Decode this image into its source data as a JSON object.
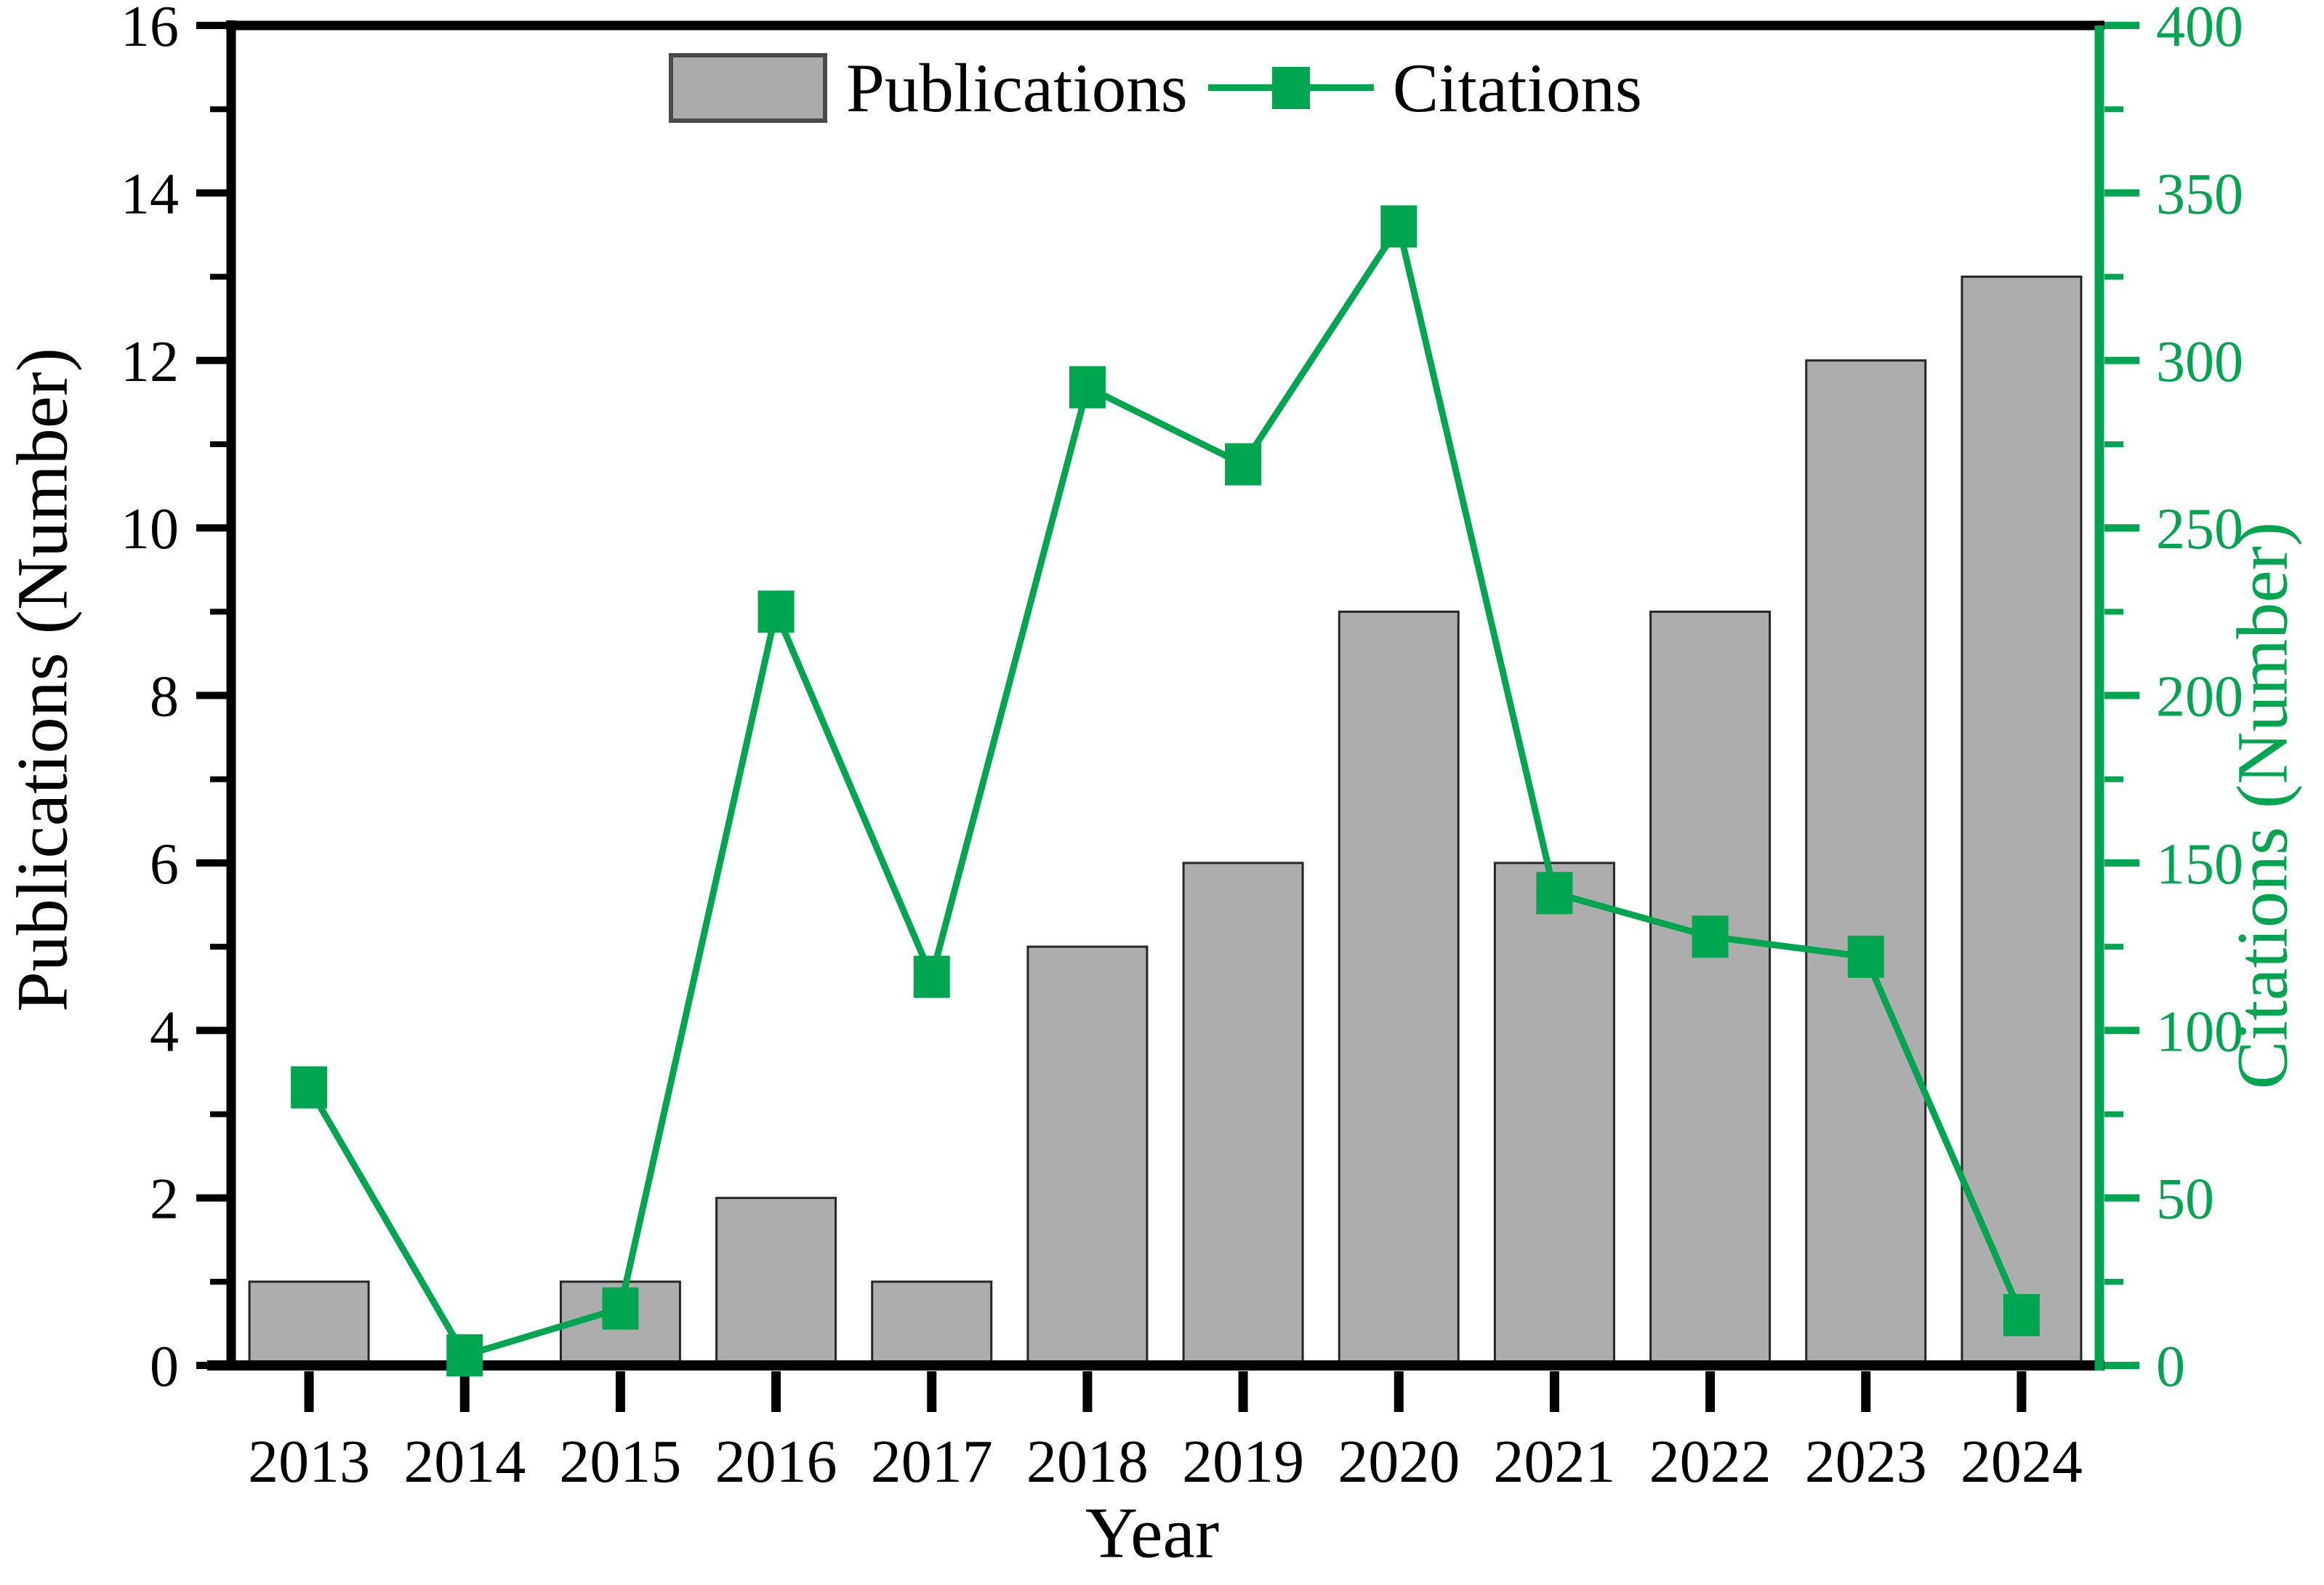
{
  "accent_color": "#00a550",
  "bar_color": "#adadad",
  "chart_data": {
    "type": "bar",
    "overlay_type": "line",
    "title": "",
    "categories": [
      "2013",
      "2014",
      "2015",
      "2016",
      "2017",
      "2018",
      "2019",
      "2020",
      "2021",
      "2022",
      "2023",
      "2024"
    ],
    "series": [
      {
        "name": "Publications",
        "type": "bar",
        "axis": "left",
        "color": "#adadad",
        "values": [
          1,
          0,
          1,
          2,
          1,
          5,
          6,
          9,
          6,
          9,
          12,
          13
        ]
      },
      {
        "name": "Citations",
        "type": "line",
        "axis": "right",
        "color": "#00a550",
        "marker": "square",
        "values": [
          83,
          3,
          17,
          225,
          116,
          292,
          269,
          340,
          141,
          128,
          122,
          15
        ]
      }
    ],
    "xlabel": "Year",
    "ylabel_left": "Publications (Number)",
    "ylabel_right": "Citations (Number)",
    "ylim_left": [
      0,
      16
    ],
    "ytick_step_left": 2,
    "yminor_left": 1,
    "y_ticks_left": [
      "0",
      "2",
      "4",
      "6",
      "8",
      "10",
      "12",
      "14",
      "16"
    ],
    "ylim_right": [
      0,
      400
    ],
    "ytick_step_right": 50,
    "yminor_right": 25,
    "y_ticks_right": [
      "0",
      "50",
      "100",
      "150",
      "200",
      "250",
      "300",
      "350",
      "400"
    ],
    "grid": false,
    "legend_position": "top-center"
  }
}
